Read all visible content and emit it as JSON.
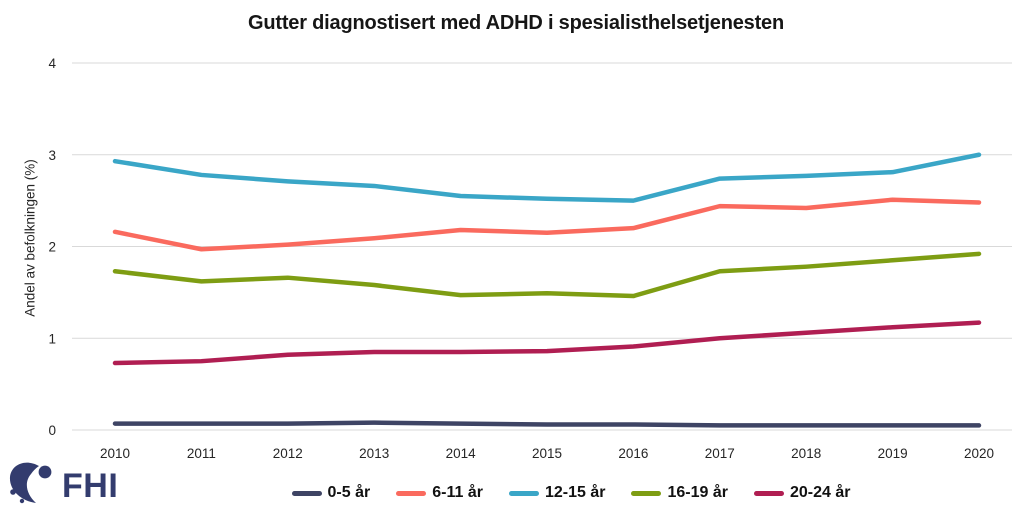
{
  "title": "Gutter diagnostisert med ADHD i spesialisthelsetjenesten",
  "logo": {
    "text": "FHI"
  },
  "chart_data": {
    "type": "line",
    "title": "Gutter diagnostisert med ADHD i spesialisthelsetjenesten",
    "xlabel": "",
    "ylabel": "Andel av befolkningen (%)",
    "ylim": [
      0,
      4
    ],
    "y_ticks": [
      0,
      1,
      2,
      3,
      4
    ],
    "grid": "horizontal",
    "gridline_color": "#D9D9D9",
    "legend_position": "bottom",
    "x": [
      2010,
      2011,
      2012,
      2013,
      2014,
      2015,
      2016,
      2017,
      2018,
      2019,
      2020
    ],
    "series": [
      {
        "name": "0-5 år",
        "color": "#3E4464",
        "values": [
          0.07,
          0.07,
          0.07,
          0.08,
          0.07,
          0.06,
          0.06,
          0.05,
          0.05,
          0.05,
          0.05
        ]
      },
      {
        "name": "6-11 år",
        "color": "#FA6A5E",
        "values": [
          2.16,
          1.97,
          2.02,
          2.09,
          2.18,
          2.15,
          2.2,
          2.44,
          2.42,
          2.51,
          2.48
        ]
      },
      {
        "name": "12-15 år",
        "color": "#3AA6C7",
        "values": [
          2.93,
          2.78,
          2.71,
          2.66,
          2.55,
          2.52,
          2.5,
          2.74,
          2.77,
          2.81,
          3.0
        ]
      },
      {
        "name": "16-19 år",
        "color": "#7E9D13",
        "values": [
          1.73,
          1.62,
          1.66,
          1.58,
          1.47,
          1.49,
          1.46,
          1.73,
          1.78,
          1.85,
          1.92
        ]
      },
      {
        "name": "20-24 år",
        "color": "#B01E52",
        "values": [
          0.73,
          0.75,
          0.82,
          0.85,
          0.85,
          0.86,
          0.91,
          1.0,
          1.06,
          1.12,
          1.17
        ]
      }
    ]
  }
}
